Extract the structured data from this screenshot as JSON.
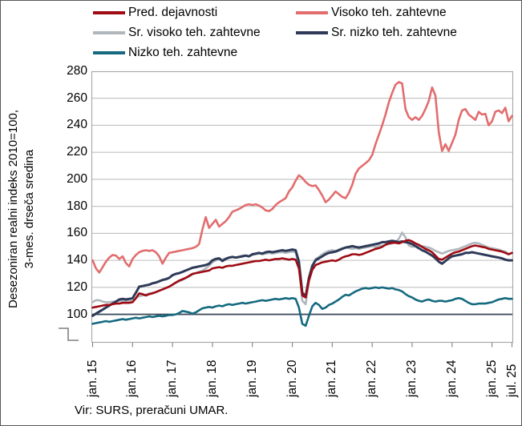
{
  "colors": {
    "red": "#9E0B13",
    "salmon": "#E26D6E",
    "gray": "#AFB7BD",
    "navy": "#2E3A58",
    "teal": "#156A80",
    "gridline": "#BFBFBF",
    "plot_border": "#A6A6A6",
    "baseline": "#424F5E",
    "tick": "#808080"
  },
  "legend": {
    "items": [
      {
        "label": "Pred. dejavnosti",
        "color_key": "red"
      },
      {
        "label": "Visoko teh. zahtevne",
        "color_key": "salmon"
      },
      {
        "label": "Sr. visoko teh. zahtevne",
        "color_key": "gray"
      },
      {
        "label": "Sr. nizko teh. zahtevne",
        "color_key": "navy"
      },
      {
        "label": "Nizko teh. zahtevne",
        "color_key": "teal"
      }
    ]
  },
  "y_axis": {
    "label_line1": "Desezoniran realni indeks 2010=100,",
    "label_line2": "3-mes. drseča sredina",
    "ticks": [
      280,
      260,
      240,
      220,
      200,
      180,
      160,
      140,
      120,
      100
    ]
  },
  "x_axis": {
    "labels": [
      "jan. 15",
      "jan. 16",
      "jan. 17",
      "jan. 18",
      "jan. 19",
      "jan. 20",
      "jan. 21",
      "jan. 22",
      "jan. 23",
      "jan. 24",
      "jan. 25",
      "jul. 25"
    ],
    "label_month_indices": [
      0,
      12,
      24,
      36,
      48,
      60,
      72,
      84,
      96,
      108,
      120,
      126
    ]
  },
  "source": "Vir: SURS, preračuni UMAR.",
  "chart_data": {
    "type": "line",
    "frequency": "monthly",
    "x_start": "2015-01",
    "x_end": "2025-07",
    "n_points": 127,
    "ylim": [
      79,
      280
    ],
    "baseline_value": 100,
    "grid": "horizontal",
    "legend_position": "top",
    "title": "",
    "ylabel": "Desezoniran realni indeks 2010=100, 3-mes. drseča sredina",
    "series": [
      {
        "name": "Pred. dejavnosti",
        "color_key": "red",
        "values": [
          105,
          105.5,
          106,
          106.5,
          107,
          107,
          107.5,
          108,
          108,
          108.5,
          108.5,
          108.5,
          109,
          112,
          115.5,
          115,
          114,
          115,
          115.5,
          116.5,
          117.5,
          118.5,
          119.5,
          120.5,
          122,
          123.5,
          125,
          126,
          127,
          128.5,
          130,
          130.5,
          131,
          131.5,
          132,
          132.5,
          134,
          134.5,
          135,
          134.5,
          135.5,
          136,
          136,
          136.5,
          137,
          137.5,
          138,
          138.5,
          139,
          139.5,
          139.5,
          140,
          140.5,
          140,
          140.5,
          141,
          141,
          141.5,
          141,
          140.5,
          141,
          140.5,
          134,
          114,
          112.5,
          125,
          133,
          136.5,
          137.5,
          138.5,
          139,
          139.5,
          140,
          139.5,
          140.5,
          142,
          143,
          143.5,
          144.5,
          144.5,
          144,
          144.5,
          145.5,
          146.5,
          147.5,
          148.5,
          149,
          150,
          151.5,
          152.5,
          153,
          153,
          152.5,
          153.5,
          154.5,
          155,
          154,
          152.5,
          151.5,
          150,
          148.5,
          147.5,
          146,
          143.5,
          141,
          140.5,
          142,
          143.5,
          145,
          146,
          146.5,
          147.5,
          148.5,
          149.5,
          150.5,
          151,
          150.5,
          150,
          149.5,
          148.5,
          148,
          147.5,
          147,
          146.5,
          145.5,
          144.5,
          145.5
        ]
      },
      {
        "name": "Visoko teh. zahtevne",
        "color_key": "salmon",
        "values": [
          140,
          134,
          131,
          135,
          139,
          142,
          144,
          143.5,
          141,
          143,
          138,
          135.5,
          141,
          144,
          146,
          147,
          147.5,
          147,
          147.5,
          146,
          143,
          137.5,
          142,
          145.5,
          146,
          146.5,
          147,
          147.5,
          148,
          148.5,
          149,
          150,
          152,
          163,
          172,
          164,
          167,
          170,
          165,
          167,
          169,
          172,
          176,
          177,
          178,
          179.5,
          181,
          181.5,
          181,
          181.5,
          180.5,
          179,
          177,
          176.5,
          178,
          181,
          183,
          184.5,
          186,
          191,
          194,
          199,
          203,
          201,
          198,
          196,
          195,
          195.5,
          192,
          188,
          183,
          185,
          188,
          191,
          189,
          187,
          186,
          190,
          196,
          204,
          208,
          210,
          212,
          214,
          218,
          226,
          233,
          240,
          248,
          257,
          264,
          270,
          272,
          271,
          252,
          246,
          244,
          246,
          244,
          247,
          252,
          258,
          268,
          262,
          235,
          221,
          226,
          221,
          227,
          233,
          244,
          251,
          252,
          248,
          246,
          244,
          250,
          248,
          248.5,
          240,
          243,
          250,
          251,
          249,
          253,
          243,
          247
        ]
      },
      {
        "name": "Sr. visoko teh. zahtevne",
        "color_key": "gray",
        "values": [
          109,
          110.5,
          110.5,
          109.5,
          109,
          109,
          109.5,
          109.5,
          110,
          110,
          109.5,
          110,
          110.5,
          112,
          113.5,
          114,
          114.5,
          115.5,
          116,
          116.5,
          117.5,
          118.5,
          119.5,
          120.5,
          122,
          123.5,
          124.5,
          125.5,
          127,
          128,
          129.5,
          130.5,
          131.5,
          132.5,
          134,
          136,
          138.5,
          140,
          141,
          140.5,
          141.5,
          142,
          142.5,
          142,
          142.5,
          143.5,
          143.5,
          143,
          144,
          144.5,
          145,
          144.5,
          145,
          145.5,
          145,
          145.5,
          146,
          146,
          145.5,
          146,
          146.5,
          146,
          136,
          110,
          107.5,
          125,
          136,
          141,
          142.5,
          144.5,
          146,
          147,
          147.5,
          147,
          148,
          149,
          149.5,
          149,
          148.5,
          149,
          148.5,
          149,
          149.5,
          150,
          150.5,
          150,
          150.5,
          151,
          151.5,
          152,
          152.5,
          153.5,
          156,
          160.5,
          157,
          151,
          150,
          150.5,
          151,
          150.5,
          150,
          149.5,
          148.5,
          147,
          146,
          145,
          146,
          147,
          147.5,
          148,
          148.5,
          149.5,
          150.5,
          151.5,
          152.5,
          153,
          152.5,
          151.5,
          150.5,
          149.5,
          149,
          148.5,
          148,
          147,
          146.5,
          144.5,
          145.5
        ]
      },
      {
        "name": "Sr. nizko teh. zahtevne",
        "color_key": "navy",
        "values": [
          99,
          100.5,
          102,
          103.5,
          105,
          106.5,
          108,
          109.5,
          111,
          111.5,
          111,
          111.5,
          112,
          116,
          120.5,
          121,
          121.5,
          122,
          123,
          123.5,
          124.5,
          125.5,
          126,
          127,
          129,
          130,
          130.5,
          131.5,
          132.5,
          133.5,
          134.5,
          135,
          135.5,
          136,
          136.5,
          137.5,
          140,
          141,
          141.5,
          139.5,
          141,
          142,
          142.5,
          142,
          142.5,
          143,
          143.5,
          143,
          144.5,
          145,
          145.5,
          145,
          146,
          146.5,
          146,
          146.5,
          147,
          147.5,
          147,
          147.5,
          148,
          147.5,
          139,
          116,
          113.5,
          127,
          136,
          140,
          141.5,
          143,
          144.5,
          145.5,
          146,
          146.5,
          147.5,
          148.5,
          149.5,
          150,
          150.5,
          150,
          149.5,
          150,
          150.5,
          151,
          151.5,
          152,
          152.5,
          153.5,
          153.5,
          154,
          154.5,
          154,
          153.5,
          154,
          153.5,
          153,
          152,
          150.5,
          149,
          147.5,
          146.5,
          145,
          143.5,
          141.5,
          139,
          137.5,
          139.5,
          141.5,
          143,
          143.5,
          144,
          144.5,
          145.5,
          145.5,
          146,
          145.5,
          145,
          144.5,
          144,
          143.5,
          143,
          142.5,
          142,
          141.5,
          140.5,
          140,
          140
        ]
      },
      {
        "name": "Nizko teh. zahtevne",
        "color_key": "teal",
        "values": [
          93,
          93.5,
          94,
          94.5,
          95,
          94.5,
          95,
          95.5,
          96,
          96.5,
          96,
          96.5,
          97,
          97.5,
          97,
          97.5,
          98,
          98.5,
          98,
          98.5,
          99,
          98.5,
          99,
          99.5,
          99.5,
          100,
          101,
          102.5,
          102,
          101.5,
          100.5,
          101.5,
          103,
          104.5,
          105,
          105.5,
          105,
          106,
          106.5,
          106,
          107,
          107.5,
          107,
          107.5,
          108,
          108.5,
          108,
          108.5,
          109,
          109.5,
          110,
          110.5,
          110,
          110.5,
          111,
          111.5,
          111,
          111.5,
          112,
          111.5,
          112,
          111.5,
          105,
          93,
          91.5,
          99,
          106,
          108.5,
          107,
          104,
          105,
          107,
          108,
          109.5,
          111,
          113,
          114.5,
          114,
          115.5,
          117,
          118,
          119,
          119.5,
          119,
          119.5,
          120,
          119.5,
          120,
          119.5,
          119,
          119.5,
          118.5,
          118,
          117,
          115,
          113.5,
          112.5,
          111,
          110,
          109.5,
          110.5,
          111,
          110,
          109.5,
          110,
          110,
          109.5,
          110,
          110.5,
          111.5,
          112,
          111.5,
          110,
          108.5,
          107.5,
          107.5,
          108,
          108,
          108,
          108.5,
          109,
          110,
          111,
          111.5,
          112,
          111.5,
          111.5
        ]
      }
    ]
  }
}
